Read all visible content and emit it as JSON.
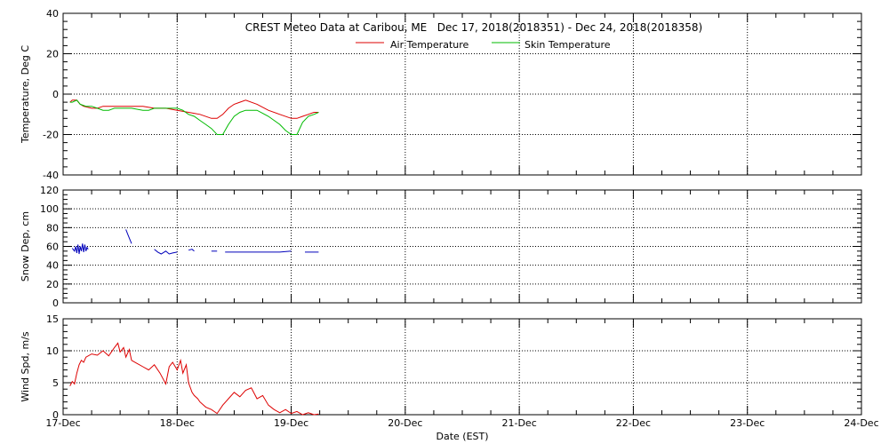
{
  "title": "CREST Meteo Data at Caribou, ME   Dec 17, 2018(2018351) - Dec 24, 2018(2018358)",
  "xlabel": "Date (EST)",
  "x_tick_labels": [
    "17-Dec",
    "18-Dec",
    "19-Dec",
    "20-Dec",
    "21-Dec",
    "22-Dec",
    "23-Dec",
    "24-Dec"
  ],
  "colors": {
    "air": "#dd0000",
    "skin": "#00bb00",
    "snow": "#0000bb",
    "wind": "#dd0000",
    "axis": "#000000"
  },
  "chart_data": [
    {
      "type": "line",
      "ylabel": "Temperature, Deg C",
      "x_unit": "days since 17-Dec",
      "xlim": [
        0,
        7
      ],
      "ylim": [
        -40,
        40
      ],
      "y_ticks": [
        -40,
        -20,
        0,
        20,
        40
      ],
      "grid": true,
      "legend_position": "top-center",
      "series": [
        {
          "name": "Air Temperature",
          "x": [
            0.06,
            0.08,
            0.12,
            0.15,
            0.18,
            0.25,
            0.3,
            0.35,
            0.4,
            0.5,
            0.6,
            0.7,
            0.8,
            0.9,
            1.0,
            1.1,
            1.2,
            1.3,
            1.35,
            1.4,
            1.45,
            1.5,
            1.55,
            1.6,
            1.7,
            1.8,
            1.9,
            2.0,
            2.05,
            2.1,
            2.15,
            2.2,
            2.24
          ],
          "y": [
            -4,
            -3,
            -3,
            -5,
            -6,
            -7,
            -7,
            -6,
            -6,
            -6,
            -6,
            -6,
            -7,
            -7,
            -8,
            -9,
            -10,
            -12,
            -12,
            -10,
            -7,
            -5,
            -4,
            -3,
            -5,
            -8,
            -10,
            -12,
            -12,
            -11,
            -10,
            -9,
            -9
          ]
        },
        {
          "name": "Skin Temperature",
          "x": [
            0.06,
            0.08,
            0.12,
            0.15,
            0.2,
            0.25,
            0.3,
            0.35,
            0.4,
            0.45,
            0.5,
            0.6,
            0.7,
            0.75,
            0.8,
            0.9,
            1.0,
            1.05,
            1.1,
            1.15,
            1.2,
            1.25,
            1.3,
            1.35,
            1.4,
            1.45,
            1.5,
            1.55,
            1.6,
            1.7,
            1.8,
            1.9,
            1.95,
            2.0,
            2.05,
            2.1,
            2.15,
            2.2,
            2.24
          ],
          "y": [
            -4,
            -4,
            -3,
            -5,
            -6,
            -6,
            -7,
            -8,
            -8,
            -7,
            -7,
            -7,
            -8,
            -8,
            -7,
            -7,
            -7,
            -8,
            -10,
            -11,
            -13,
            -15,
            -17,
            -20,
            -20,
            -15,
            -11,
            -9,
            -8,
            -8,
            -11,
            -15,
            -18,
            -20,
            -20,
            -14,
            -11,
            -10,
            -9
          ]
        }
      ]
    },
    {
      "type": "line",
      "ylabel": "Snow Dep, cm",
      "x_unit": "days since 17-Dec",
      "xlim": [
        0,
        7
      ],
      "ylim": [
        0,
        120
      ],
      "y_ticks": [
        0,
        20,
        40,
        60,
        80,
        100,
        120
      ],
      "grid": true,
      "series": [
        {
          "name": "",
          "segments": [
            {
              "x": [
                0.08,
                0.1,
                0.11,
                0.12,
                0.13,
                0.14,
                0.15,
                0.16,
                0.17,
                0.18,
                0.19,
                0.2,
                0.21,
                0.22
              ],
              "y": [
                58,
                55,
                60,
                53,
                62,
                52,
                60,
                55,
                63,
                54,
                62,
                55,
                59,
                57
              ]
            },
            {
              "x": [
                0.55,
                0.57,
                0.6
              ],
              "y": [
                78,
                72,
                63
              ]
            },
            {
              "x": [
                0.8,
                0.83,
                0.86,
                0.9,
                0.93,
                0.96,
                1.0
              ],
              "y": [
                57,
                54,
                52,
                55,
                52,
                53,
                54
              ]
            },
            {
              "x": [
                1.1,
                1.13,
                1.15
              ],
              "y": [
                56,
                57,
                55
              ]
            },
            {
              "x": [
                1.3,
                1.35
              ],
              "y": [
                55,
                55
              ]
            },
            {
              "x": [
                1.42,
                1.5,
                1.6,
                1.7,
                1.8,
                1.9,
                2.0
              ],
              "y": [
                54,
                54,
                54,
                54,
                54,
                54,
                55
              ]
            },
            {
              "x": [
                2.12,
                2.24
              ],
              "y": [
                54,
                54
              ]
            }
          ]
        }
      ]
    },
    {
      "type": "line",
      "ylabel": "Wind Spd, m/s",
      "x_unit": "days since 17-Dec",
      "xlim": [
        0,
        7
      ],
      "ylim": [
        0,
        15
      ],
      "y_ticks": [
        0,
        5,
        10,
        15
      ],
      "grid": true,
      "series": [
        {
          "name": "",
          "x": [
            0.06,
            0.08,
            0.1,
            0.12,
            0.14,
            0.16,
            0.18,
            0.2,
            0.25,
            0.3,
            0.35,
            0.4,
            0.45,
            0.48,
            0.5,
            0.53,
            0.55,
            0.58,
            0.6,
            0.65,
            0.7,
            0.75,
            0.8,
            0.85,
            0.9,
            0.93,
            0.96,
            1.0,
            1.03,
            1.05,
            1.08,
            1.1,
            1.13,
            1.15,
            1.18,
            1.2,
            1.25,
            1.3,
            1.35,
            1.4,
            1.45,
            1.5,
            1.55,
            1.6,
            1.65,
            1.7,
            1.75,
            1.8,
            1.85,
            1.9,
            1.95,
            2.0,
            2.05,
            2.1,
            2.15,
            2.2,
            2.24
          ],
          "y": [
            4.5,
            5.2,
            4.8,
            6.5,
            7.8,
            8.5,
            8.2,
            9.0,
            9.5,
            9.3,
            10.0,
            9.2,
            10.5,
            11.2,
            9.8,
            10.5,
            9.0,
            10.2,
            8.5,
            8.0,
            7.5,
            7.0,
            7.8,
            6.5,
            4.8,
            7.5,
            8.2,
            7.0,
            8.5,
            6.5,
            7.8,
            5.0,
            3.5,
            3.0,
            2.5,
            2.0,
            1.2,
            0.8,
            0.2,
            1.5,
            2.5,
            3.5,
            2.8,
            3.8,
            4.2,
            2.5,
            3.0,
            1.5,
            0.8,
            0.3,
            0.8,
            0.2,
            0.5,
            0.0,
            0.3,
            0.0,
            0.1
          ]
        }
      ]
    }
  ]
}
